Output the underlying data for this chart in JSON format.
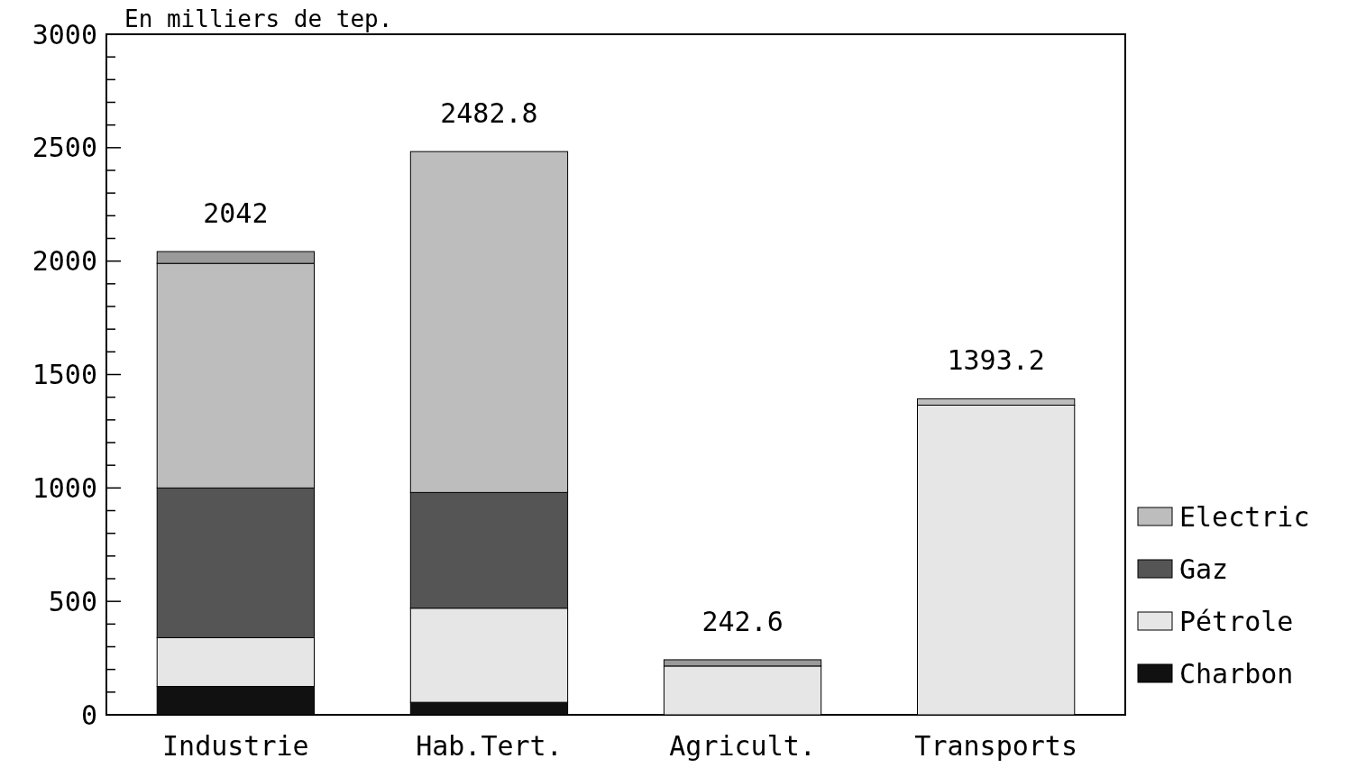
{
  "chart_data": {
    "type": "bar",
    "stacked": true,
    "ylabel": "En milliers de tep.",
    "categories": [
      "Industrie",
      "Hab.Tert.",
      "Agricult.",
      "Transports"
    ],
    "series": [
      {
        "name": "Charbon",
        "color": "#111111",
        "values": [
          125,
          55,
          null,
          null
        ]
      },
      {
        "name": "Pétrole",
        "color": "#e6e6e6",
        "values": [
          215,
          415,
          215,
          1365
        ]
      },
      {
        "name": "Gaz",
        "color": "#555555",
        "values": [
          660,
          510,
          null,
          null
        ]
      },
      {
        "name": "Electric",
        "color": "#bdbdbd",
        "values": [
          990,
          1502.8,
          null,
          28
        ]
      },
      {
        "color": "#9a9a9a",
        "values": [
          52,
          null,
          27.6,
          null
        ]
      }
    ],
    "totals": [
      "2042",
      "2482.8",
      "242.6",
      "1393.2"
    ],
    "ylim": [
      0,
      3000
    ],
    "yticks": [
      0,
      {
        "value": 100,
        "label": null
      },
      {
        "value": 200,
        "label": null
      },
      {
        "value": 300,
        "label": null
      },
      {
        "value": 400,
        "label": null
      },
      500,
      {
        "value": 600,
        "label": null
      },
      {
        "value": 700,
        "label": null
      },
      {
        "value": 800,
        "label": null
      },
      {
        "value": 900,
        "label": null
      },
      1000,
      {
        "value": 1100,
        "label": null
      },
      {
        "value": 1200,
        "label": null
      },
      {
        "value": 1300,
        "label": null
      },
      {
        "value": 1400,
        "label": null
      },
      1500,
      {
        "value": 1600,
        "label": null
      },
      {
        "value": 1700,
        "label": null
      },
      {
        "value": 1800,
        "label": null
      },
      {
        "value": 1900,
        "label": null
      },
      2000,
      {
        "value": 2100,
        "label": null
      },
      {
        "value": 2200,
        "label": null
      },
      {
        "value": 2300,
        "label": null
      },
      {
        "value": 2400,
        "label": null
      },
      2500,
      {
        "value": 2600,
        "label": null
      },
      {
        "value": 2700,
        "label": null
      },
      {
        "value": 2800,
        "label": null
      },
      {
        "value": 2900,
        "label": null
      },
      3000
    ],
    "legend": "right"
  }
}
